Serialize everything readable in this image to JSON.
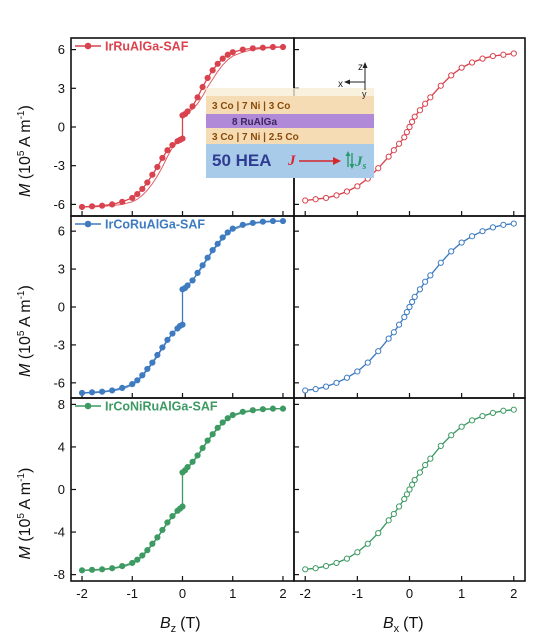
{
  "chart_data": {
    "type": "line",
    "x_label": {
      "symbol": "B",
      "sub_left": "z",
      "sub_right": "x",
      "unit": "(T)"
    },
    "y_label": {
      "symbol": "M",
      "unit_prefix": "(10",
      "unit_exp": "5",
      "unit_mid": " A m",
      "unit_exp2": "-1",
      "unit_suffix": ")"
    },
    "x_ticks": [
      "-2",
      "-1",
      "0",
      "1",
      "2"
    ],
    "x_range": [
      -2.1,
      2.1
    ],
    "rows": [
      {
        "legend": "IrRuAlGa-SAF",
        "color": "#d9434e",
        "y_range": [
          -6.9,
          6.9
        ],
        "y_ticks": [
          "6",
          "3",
          "0",
          "-3",
          "-6"
        ],
        "y_tick_values": [
          6,
          3,
          0,
          -3,
          -6
        ],
        "left": {
          "x": [
            -2.0,
            -1.8,
            -1.6,
            -1.4,
            -1.2,
            -1.0,
            -0.9,
            -0.8,
            -0.7,
            -0.6,
            -0.5,
            -0.4,
            -0.3,
            -0.2,
            -0.1,
            -0.05,
            0.0,
            0.0,
            0.05,
            0.1,
            0.2,
            0.3,
            0.4,
            0.5,
            0.6,
            0.7,
            0.8,
            0.9,
            1.0,
            1.2,
            1.4,
            1.6,
            1.8,
            2.0
          ],
          "y": [
            -6.2,
            -6.15,
            -6.1,
            -6.0,
            -5.8,
            -5.5,
            -5.2,
            -4.8,
            -4.3,
            -3.7,
            -3.1,
            -2.4,
            -1.8,
            -1.4,
            -1.1,
            -1.0,
            -0.9,
            0.9,
            1.0,
            1.2,
            1.6,
            2.3,
            3.1,
            3.8,
            4.4,
            4.9,
            5.3,
            5.6,
            5.8,
            6.0,
            6.1,
            6.15,
            6.2,
            6.2
          ]
        },
        "right": {
          "x": [
            -2.0,
            -1.8,
            -1.6,
            -1.4,
            -1.2,
            -1.0,
            -0.8,
            -0.6,
            -0.4,
            -0.3,
            -0.2,
            -0.1,
            -0.05,
            0.0,
            0.05,
            0.1,
            0.2,
            0.3,
            0.4,
            0.6,
            0.8,
            1.0,
            1.2,
            1.4,
            1.6,
            1.8,
            2.0
          ],
          "y": [
            -5.7,
            -5.6,
            -5.5,
            -5.3,
            -5.0,
            -4.6,
            -4.0,
            -3.2,
            -2.3,
            -1.8,
            -1.3,
            -0.8,
            -0.4,
            0.0,
            0.4,
            0.8,
            1.3,
            1.8,
            2.3,
            3.2,
            4.0,
            4.6,
            5.0,
            5.3,
            5.5,
            5.6,
            5.7
          ]
        }
      },
      {
        "legend": "IrCoRuAlGa-SAF",
        "color": "#3e7bc0",
        "y_range": [
          -7.2,
          7.2
        ],
        "y_ticks": [
          "6",
          "3",
          "0",
          "-3",
          "-6"
        ],
        "y_tick_values": [
          6,
          3,
          0,
          -3,
          -6
        ],
        "left": {
          "x": [
            -2.0,
            -1.8,
            -1.6,
            -1.4,
            -1.2,
            -1.0,
            -0.9,
            -0.8,
            -0.7,
            -0.6,
            -0.5,
            -0.4,
            -0.3,
            -0.2,
            -0.1,
            -0.05,
            0.0,
            0.0,
            0.05,
            0.1,
            0.2,
            0.3,
            0.4,
            0.5,
            0.6,
            0.7,
            0.8,
            0.9,
            1.0,
            1.2,
            1.4,
            1.6,
            1.8,
            2.0
          ],
          "y": [
            -6.8,
            -6.75,
            -6.7,
            -6.6,
            -6.4,
            -6.1,
            -5.8,
            -5.4,
            -4.9,
            -4.4,
            -3.8,
            -3.2,
            -2.6,
            -2.1,
            -1.7,
            -1.5,
            -1.4,
            1.4,
            1.5,
            1.7,
            2.1,
            2.7,
            3.3,
            3.9,
            4.5,
            5.0,
            5.5,
            5.9,
            6.2,
            6.5,
            6.65,
            6.75,
            6.8,
            6.8
          ]
        },
        "right": {
          "x": [
            -2.0,
            -1.8,
            -1.6,
            -1.4,
            -1.2,
            -1.0,
            -0.8,
            -0.6,
            -0.4,
            -0.3,
            -0.2,
            -0.1,
            -0.05,
            0.0,
            0.05,
            0.1,
            0.2,
            0.3,
            0.4,
            0.6,
            0.8,
            1.0,
            1.2,
            1.4,
            1.6,
            1.8,
            2.0
          ],
          "y": [
            -6.6,
            -6.5,
            -6.3,
            -6.0,
            -5.6,
            -5.1,
            -4.4,
            -3.5,
            -2.5,
            -2.0,
            -1.4,
            -0.8,
            -0.4,
            0.0,
            0.4,
            0.8,
            1.4,
            2.0,
            2.5,
            3.5,
            4.4,
            5.1,
            5.6,
            6.0,
            6.3,
            6.5,
            6.6
          ]
        }
      },
      {
        "legend": "IrCoNiRuAlGa-SAF",
        "color": "#3d9a63",
        "y_range": [
          -8.6,
          8.6
        ],
        "y_ticks": [
          "8",
          "4",
          "0",
          "-4",
          "-8"
        ],
        "y_tick_values": [
          8,
          4,
          0,
          -4,
          -8
        ],
        "left": {
          "x": [
            -2.0,
            -1.8,
            -1.6,
            -1.4,
            -1.2,
            -1.0,
            -0.9,
            -0.8,
            -0.7,
            -0.6,
            -0.5,
            -0.4,
            -0.3,
            -0.2,
            -0.1,
            -0.05,
            0.0,
            0.0,
            0.05,
            0.1,
            0.2,
            0.3,
            0.4,
            0.5,
            0.6,
            0.7,
            0.8,
            0.9,
            1.0,
            1.2,
            1.4,
            1.6,
            1.8,
            2.0
          ],
          "y": [
            -7.6,
            -7.55,
            -7.5,
            -7.4,
            -7.2,
            -6.9,
            -6.6,
            -6.2,
            -5.7,
            -5.1,
            -4.5,
            -3.8,
            -3.1,
            -2.5,
            -2.0,
            -1.8,
            -1.6,
            1.6,
            1.8,
            2.1,
            2.6,
            3.2,
            3.9,
            4.6,
            5.2,
            5.8,
            6.3,
            6.7,
            7.0,
            7.3,
            7.45,
            7.55,
            7.6,
            7.6
          ]
        },
        "right": {
          "x": [
            -2.0,
            -1.8,
            -1.6,
            -1.4,
            -1.2,
            -1.0,
            -0.8,
            -0.6,
            -0.4,
            -0.3,
            -0.2,
            -0.1,
            -0.05,
            0.0,
            0.05,
            0.1,
            0.2,
            0.3,
            0.4,
            0.6,
            0.8,
            1.0,
            1.2,
            1.4,
            1.6,
            1.8,
            2.0
          ],
          "y": [
            -7.5,
            -7.4,
            -7.2,
            -6.9,
            -6.5,
            -5.9,
            -5.1,
            -4.1,
            -2.9,
            -2.3,
            -1.6,
            -0.9,
            -0.45,
            0.0,
            0.45,
            0.9,
            1.6,
            2.3,
            2.9,
            4.1,
            5.1,
            5.9,
            6.5,
            6.9,
            7.2,
            7.4,
            7.5
          ]
        }
      }
    ],
    "inset": {
      "layers": [
        "3 Co | 7 Ni | 3 Co",
        "8 RuAlGa",
        "3 Co | 7 Ni | 2.5 Co",
        "50 HEA"
      ],
      "current_symbol": "J",
      "spin_symbol": "s",
      "axes": [
        "z",
        "x",
        "y"
      ],
      "colors": {
        "base": "#a9cbea",
        "spacer": "#b08ad8",
        "magnet": "#f6dcb4",
        "arrow": "#d6262e",
        "spin": "#2a9a6a"
      }
    }
  }
}
